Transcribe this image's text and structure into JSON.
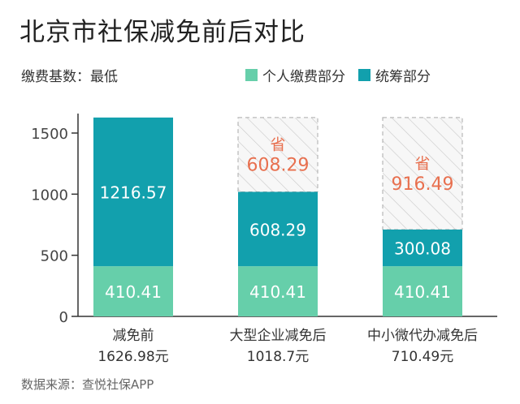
{
  "title": "北京市社保减免前后对比",
  "subtitle": "缴费基数：最低",
  "source": "数据来源：查悦社保APP",
  "colors": {
    "personal": "#66cfaa",
    "pooled": "#12a0ad",
    "saved_text": "#e8704f",
    "axis": "#333333",
    "hatch": "#bbbbbb"
  },
  "chart_data": {
    "type": "bar",
    "stacked": true,
    "categories": [
      {
        "label": "减免前",
        "total_label": "1626.98元"
      },
      {
        "label": "大型企业减免后",
        "total_label": "1018.7元"
      },
      {
        "label": "中小微代办减免后",
        "total_label": "710.49元"
      }
    ],
    "series": [
      {
        "name": "个人缴费部分",
        "values": [
          410.41,
          410.41,
          410.41
        ],
        "labels": [
          "410.41",
          "410.41",
          "410.41"
        ]
      },
      {
        "name": "统筹部分",
        "values": [
          1216.57,
          608.29,
          300.08
        ],
        "labels": [
          "1216.57",
          "608.29",
          "300.08"
        ]
      }
    ],
    "savings": [
      {
        "values": null
      },
      {
        "prefix": "省",
        "value": 608.29,
        "label": "608.29"
      },
      {
        "prefix": "省",
        "value": 916.49,
        "label": "916.49"
      }
    ],
    "ylim": [
      0,
      1626.98
    ],
    "yticks": [
      0,
      500,
      1000,
      1500
    ],
    "grid": false,
    "legend_position": "top-right"
  }
}
